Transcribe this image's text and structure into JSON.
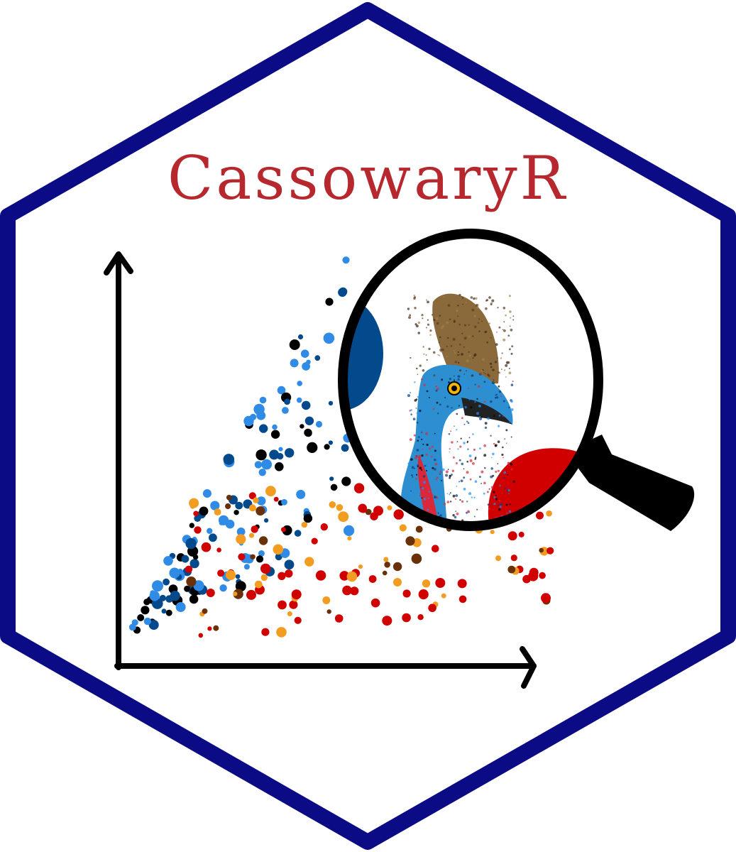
{
  "title": "CassowaryR",
  "colors": {
    "border": "#0b0b86",
    "title": "#b7282e",
    "axis": "#000000",
    "blue_dark": "#034a8c",
    "blue_light": "#2f8be6",
    "black": "#000000",
    "red": "#d10000",
    "orange": "#f39c22",
    "brown": "#6a3008",
    "lens_stroke": "#000000"
  },
  "icons": {
    "lens": "magnifying-glass-icon",
    "bird": "cassowary-head-icon"
  }
}
